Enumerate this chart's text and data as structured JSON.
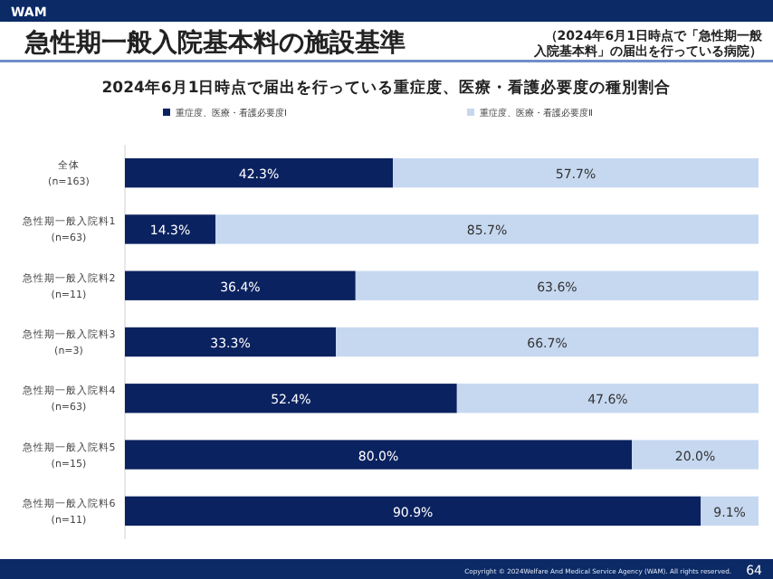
{
  "chart_data": {
    "type": "bar",
    "orientation": "horizontal",
    "stacked": true,
    "title": "急性期一般入院基本料の施設基準",
    "subtitle": "2024年6月1日時点で届出を行っている重症度、医療・看護必要度の種別割合",
    "annotations": [
      "WAM",
      "（2024年6月1日時点で「急性期一般入院基本料」の届出を行っている病院）",
      "Copyright © 2024Welfare And Medical Service Agency (WAM). All rights reserved.",
      "64"
    ],
    "categories": [
      "全体\n(n=163)",
      "急性期一般入院料1\n(n=63)",
      "急性期一般入院料2\n(n=11)",
      "急性期一般入院料3\n(n=3)",
      "急性期一般入院料4\n(n=63)",
      "急性期一般入院料5\n(n=15)",
      "急性期一般入院料6\n(n=11)"
    ],
    "series": [
      {
        "name": "重症度、医療・看護必要度Ⅰ",
        "color": "#0b2260",
        "values": [
          42.3,
          14.3,
          36.4,
          33.3,
          52.4,
          80.0,
          90.9
        ],
        "value_labels": [
          "42.3%",
          "14.3%",
          "36.4%",
          "33.3%",
          "52.4%",
          "80.0%",
          "90.9%"
        ]
      },
      {
        "name": "重症度、医療・看護必要度Ⅱ",
        "color": "#c6d8f0",
        "values": [
          57.7,
          85.7,
          63.6,
          66.7,
          47.6,
          20.0,
          9.1
        ],
        "value_labels": [
          "57.7%",
          "85.7%",
          "63.6%",
          "66.7%",
          "47.6%",
          "20.0%",
          "9.1%"
        ]
      }
    ],
    "legend": "top"
  }
}
